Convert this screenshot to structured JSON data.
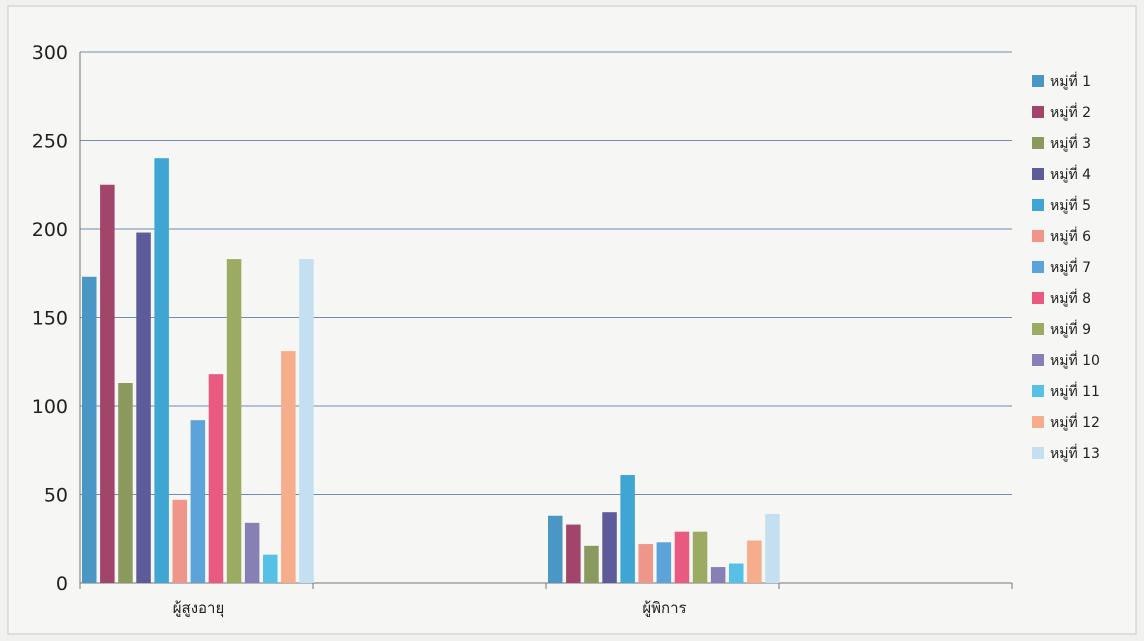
{
  "chart_data": {
    "type": "bar",
    "categories": [
      "ผู้สูงอายุ",
      "ผู้พิการ"
    ],
    "series": [
      {
        "name": "หมู่ที่ 1",
        "values": [
          173,
          38
        ],
        "color": "#4a97c5"
      },
      {
        "name": "หมู่ที่ 2",
        "values": [
          225,
          33
        ],
        "color": "#a2456b"
      },
      {
        "name": "หมู่ที่ 3",
        "values": [
          113,
          21
        ],
        "color": "#8a9a5e"
      },
      {
        "name": "หมู่ที่ 4",
        "values": [
          198,
          40
        ],
        "color": "#5e5b9a"
      },
      {
        "name": "หมู่ที่ 5",
        "values": [
          240,
          61
        ],
        "color": "#3fa6d3"
      },
      {
        "name": "หมู่ที่ 6",
        "values": [
          47,
          22
        ],
        "color": "#f0958a"
      },
      {
        "name": "หมู่ที่ 7",
        "values": [
          92,
          23
        ],
        "color": "#5ba3d8"
      },
      {
        "name": "หมู่ที่ 8",
        "values": [
          118,
          29
        ],
        "color": "#e85a7f"
      },
      {
        "name": "หมู่ที่ 9",
        "values": [
          183,
          29
        ],
        "color": "#9bab62"
      },
      {
        "name": "หมู่ที่ 10",
        "values": [
          34,
          9
        ],
        "color": "#8680b5"
      },
      {
        "name": "หมู่ที่ 11",
        "values": [
          16,
          11
        ],
        "color": "#56c0e6"
      },
      {
        "name": "หมู่ที่ 12",
        "values": [
          131,
          24
        ],
        "color": "#f6ad8c"
      },
      {
        "name": "หมู่ที่ 13",
        "values": [
          183,
          39
        ],
        "color": "#c3dff0"
      }
    ],
    "ylim": [
      0,
      300
    ],
    "yticks": [
      0,
      50,
      100,
      150,
      200,
      250,
      300
    ],
    "legend_position": "right",
    "grid": true,
    "title": "",
    "xlabel": "",
    "ylabel": ""
  }
}
